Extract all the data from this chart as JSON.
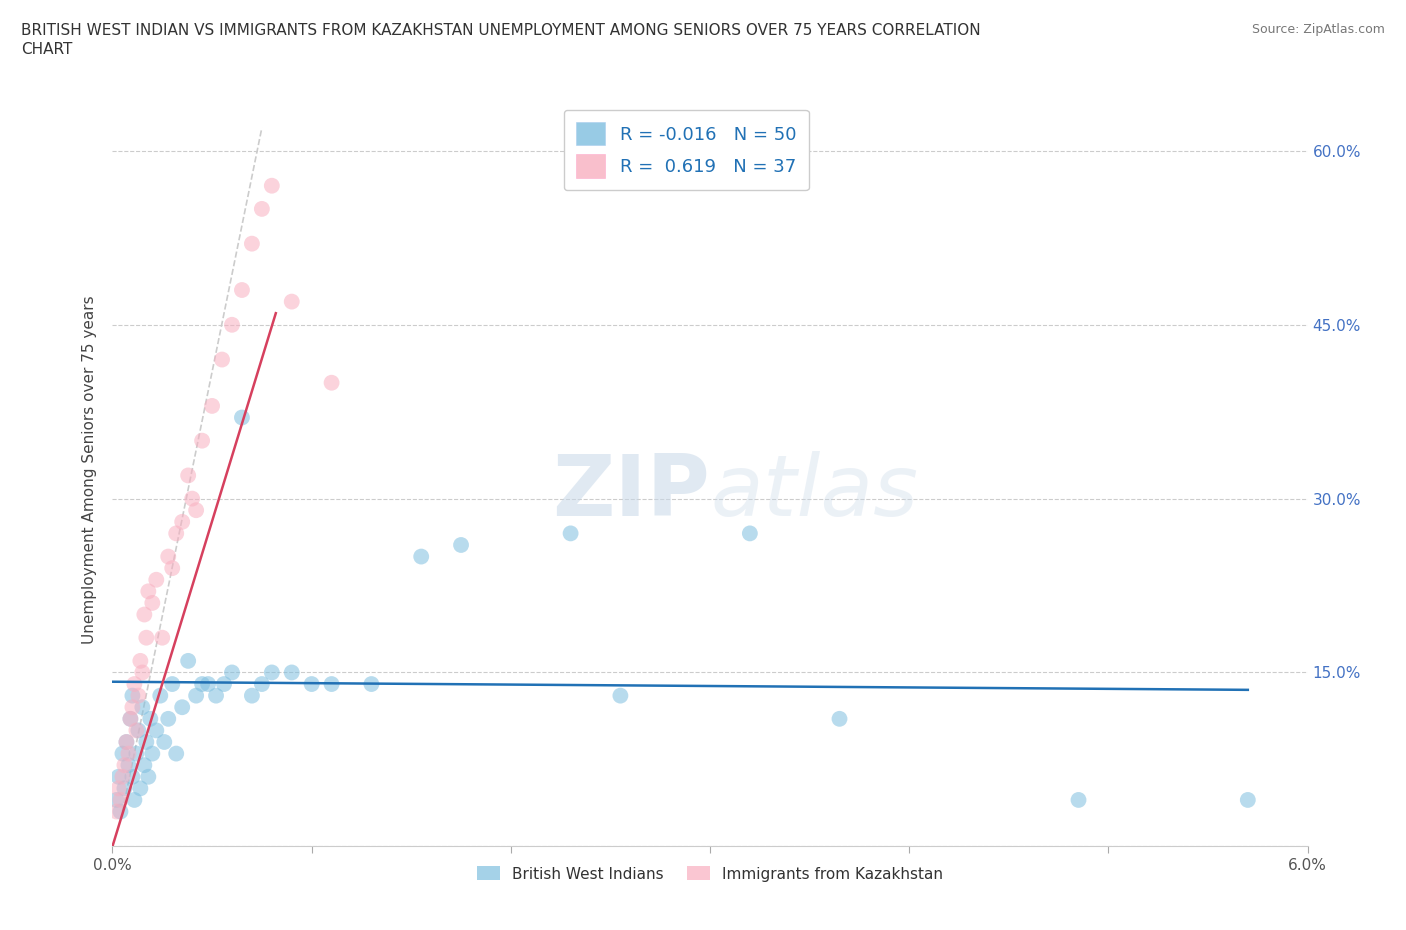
{
  "title_line1": "BRITISH WEST INDIAN VS IMMIGRANTS FROM KAZAKHSTAN UNEMPLOYMENT AMONG SENIORS OVER 75 YEARS CORRELATION",
  "title_line2": "CHART",
  "source": "Source: ZipAtlas.com",
  "ylabel": "Unemployment Among Seniors over 75 years",
  "xlim": [
    0.0,
    6.0
  ],
  "ylim": [
    0.0,
    65.0
  ],
  "xtick_positions": [
    0.0,
    1.0,
    2.0,
    3.0,
    4.0,
    5.0,
    6.0
  ],
  "xtick_labels": [
    "0.0%",
    "",
    "",
    "",
    "",
    "",
    "6.0%"
  ],
  "yticks": [
    0.0,
    15.0,
    30.0,
    45.0,
    60.0
  ],
  "ytick_labels_left": [
    "",
    "",
    "",
    "",
    ""
  ],
  "ytick_labels_right": [
    "",
    "15.0%",
    "30.0%",
    "45.0%",
    "60.0%"
  ],
  "blue_color": "#7fbfdf",
  "pink_color": "#f8afc0",
  "blue_line_color": "#2171b5",
  "pink_line_color": "#d6405e",
  "ref_line_color": "#cccccc",
  "watermark_zip": "ZIP",
  "watermark_atlas": "atlas",
  "legend_label_blue": "British West Indians",
  "legend_label_pink": "Immigrants from Kazakhstan",
  "legend_r_blue": "R = -0.016",
  "legend_n_blue": "N = 50",
  "legend_r_pink": "R =  0.619",
  "legend_n_pink": "N = 37",
  "blue_x": [
    0.02,
    0.03,
    0.04,
    0.05,
    0.06,
    0.07,
    0.08,
    0.09,
    0.1,
    0.1,
    0.11,
    0.12,
    0.13,
    0.14,
    0.15,
    0.16,
    0.17,
    0.18,
    0.19,
    0.2,
    0.22,
    0.24,
    0.26,
    0.28,
    0.3,
    0.32,
    0.35,
    0.38,
    0.42,
    0.45,
    0.48,
    0.52,
    0.56,
    0.6,
    0.65,
    0.7,
    0.75,
    0.8,
    0.9,
    1.0,
    1.1,
    1.3,
    1.55,
    1.75,
    2.3,
    2.55,
    3.2,
    3.65,
    4.85,
    5.7
  ],
  "blue_y": [
    4.0,
    6.0,
    3.0,
    8.0,
    5.0,
    9.0,
    7.0,
    11.0,
    6.0,
    13.0,
    4.0,
    8.0,
    10.0,
    5.0,
    12.0,
    7.0,
    9.0,
    6.0,
    11.0,
    8.0,
    10.0,
    13.0,
    9.0,
    11.0,
    14.0,
    8.0,
    12.0,
    16.0,
    13.0,
    14.0,
    14.0,
    13.0,
    14.0,
    15.0,
    37.0,
    13.0,
    14.0,
    15.0,
    15.0,
    14.0,
    14.0,
    14.0,
    25.0,
    26.0,
    27.0,
    13.0,
    27.0,
    11.0,
    4.0,
    4.0
  ],
  "pink_x": [
    0.02,
    0.03,
    0.04,
    0.05,
    0.06,
    0.07,
    0.08,
    0.09,
    0.1,
    0.11,
    0.12,
    0.13,
    0.14,
    0.15,
    0.16,
    0.17,
    0.18,
    0.2,
    0.22,
    0.25,
    0.28,
    0.3,
    0.32,
    0.35,
    0.38,
    0.4,
    0.42,
    0.45,
    0.5,
    0.55,
    0.6,
    0.65,
    0.7,
    0.75,
    0.8,
    0.9,
    1.1
  ],
  "pink_y": [
    3.0,
    5.0,
    4.0,
    6.0,
    7.0,
    9.0,
    8.0,
    11.0,
    12.0,
    14.0,
    10.0,
    13.0,
    16.0,
    15.0,
    20.0,
    18.0,
    22.0,
    21.0,
    23.0,
    18.0,
    25.0,
    24.0,
    27.0,
    28.0,
    32.0,
    30.0,
    29.0,
    35.0,
    38.0,
    42.0,
    45.0,
    48.0,
    52.0,
    55.0,
    57.0,
    47.0,
    40.0
  ],
  "pink_trend_x": [
    0.0,
    0.82
  ],
  "pink_trend_y": [
    0.0,
    46.0
  ],
  "blue_trend_x": [
    0.0,
    5.7
  ],
  "blue_trend_y": [
    14.2,
    13.5
  ],
  "ref_line_x": [
    0.05,
    0.75
  ],
  "ref_line_y": [
    3.0,
    62.0
  ]
}
